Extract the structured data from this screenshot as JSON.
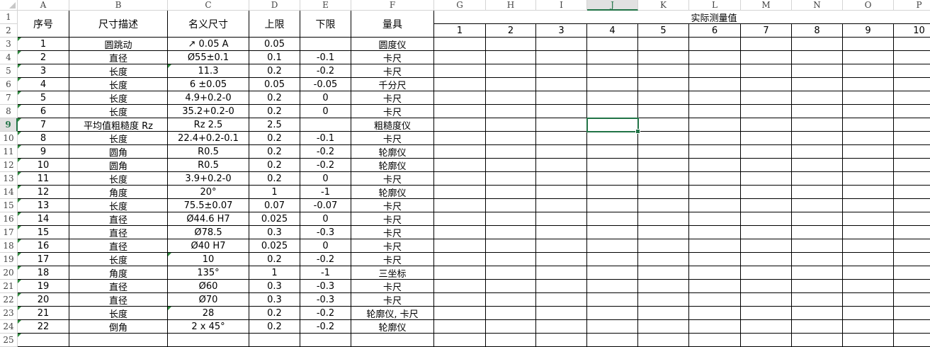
{
  "columns": [
    "A",
    "B",
    "C",
    "D",
    "E",
    "F",
    "G",
    "H",
    "I",
    "J",
    "K",
    "L",
    "M",
    "N",
    "O",
    "P"
  ],
  "selected_cell": "J9",
  "headers": {
    "A": "序号",
    "B": "尺寸描述",
    "C": "名义尺寸",
    "D": "上限",
    "E": "下限",
    "F": "量具",
    "measured_group": "实际测量值",
    "measure_numbers": [
      "1",
      "2",
      "3",
      "4",
      "5",
      "6",
      "7",
      "8",
      "9",
      "10"
    ]
  },
  "rows": [
    [
      "1",
      "圆跳动",
      "↗ 0.05 A",
      "0.05",
      "",
      "圆度仪"
    ],
    [
      "2",
      "直径",
      "Ø55±0.1",
      "0.1",
      "-0.1",
      "卡尺"
    ],
    [
      "3",
      "长度",
      "11.3",
      "0.2",
      "-0.2",
      "卡尺"
    ],
    [
      "4",
      "长度",
      "6 ±0.05",
      "0.05",
      "-0.05",
      "千分尺"
    ],
    [
      "5",
      "长度",
      "4.9+0.2-0",
      "0.2",
      "0",
      "卡尺"
    ],
    [
      "6",
      "长度",
      "35.2+0.2-0",
      "0.2",
      "0",
      "卡尺"
    ],
    [
      "7",
      "平均值粗糙度 Rz",
      "Rz 2.5",
      "2.5",
      "",
      "粗糙度仪"
    ],
    [
      "8",
      "长度",
      "22.4+0.2-0.1",
      "0.2",
      "-0.1",
      "卡尺"
    ],
    [
      "9",
      "圆角",
      "R0.5",
      "0.2",
      "-0.2",
      "轮廓仪"
    ],
    [
      "10",
      "圆角",
      "R0.5",
      "0.2",
      "-0.2",
      "轮廓仪"
    ],
    [
      "11",
      "长度",
      "3.9+0.2-0",
      "0.2",
      "0",
      "卡尺"
    ],
    [
      "12",
      "角度",
      "20°",
      "1",
      "-1",
      "轮廓仪"
    ],
    [
      "13",
      "长度",
      "75.5±0.07",
      "0.07",
      "-0.07",
      "卡尺"
    ],
    [
      "14",
      "直径",
      "Ø44.6 H7",
      "0.025",
      "0",
      "卡尺"
    ],
    [
      "15",
      "直径",
      "Ø78.5",
      "0.3",
      "-0.3",
      "卡尺"
    ],
    [
      "16",
      "直径",
      "Ø40 H7",
      "0.025",
      "0",
      "卡尺"
    ],
    [
      "17",
      "长度",
      "10",
      "0.2",
      "-0.2",
      "卡尺"
    ],
    [
      "18",
      "角度",
      "135°",
      "1",
      "-1",
      "三坐标"
    ],
    [
      "19",
      "直径",
      "Ø60",
      "0.3",
      "-0.3",
      "卡尺"
    ],
    [
      "20",
      "直径",
      "Ø70",
      "0.3",
      "-0.3",
      "卡尺"
    ],
    [
      "21",
      "长度",
      "28",
      "0.2",
      "-0.2",
      "轮廓仪, 卡尺"
    ],
    [
      "22",
      "倒角",
      "2 x 45°",
      "0.2",
      "-0.2",
      "轮廓仪"
    ]
  ],
  "accent_color": "#217346",
  "note_triangle_color": "#2e8b3e"
}
